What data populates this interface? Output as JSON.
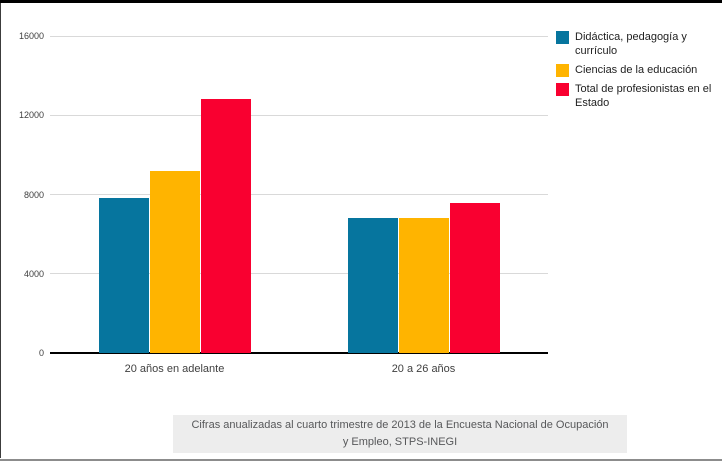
{
  "chart_data": {
    "type": "bar",
    "categories": [
      "20 años en adelante",
      "20 a 26 años"
    ],
    "series": [
      {
        "name": "Didáctica, pedagogía y currículo",
        "values": [
          7800,
          6800
        ],
        "color": "#06759e"
      },
      {
        "name": "Ciencias de la educación",
        "values": [
          9200,
          6800
        ],
        "color": "#ffb400"
      },
      {
        "name": "Total de profesionistas en el Estado",
        "values": [
          12800,
          7550
        ],
        "color": "#f90030"
      }
    ],
    "title": "",
    "xlabel": "",
    "ylabel": "",
    "ylim": [
      0,
      16000
    ],
    "yticks": [
      0,
      4000,
      8000,
      12000,
      16000
    ],
    "grid": true,
    "legend_position": "right"
  },
  "caption": {
    "line1": "Cifras anualizadas al cuarto trimestre de 2013 de la Encuesta Nacional de Ocupación",
    "line2": "y Empleo, STPS-INEGI"
  },
  "colors": {
    "gridline": "#d9d9d9",
    "axis": "#000000",
    "tick_text": "#3f3f3f",
    "legend_text": "#1f1f1f",
    "caption_bg": "#ededed",
    "caption_text": "#57585a"
  }
}
